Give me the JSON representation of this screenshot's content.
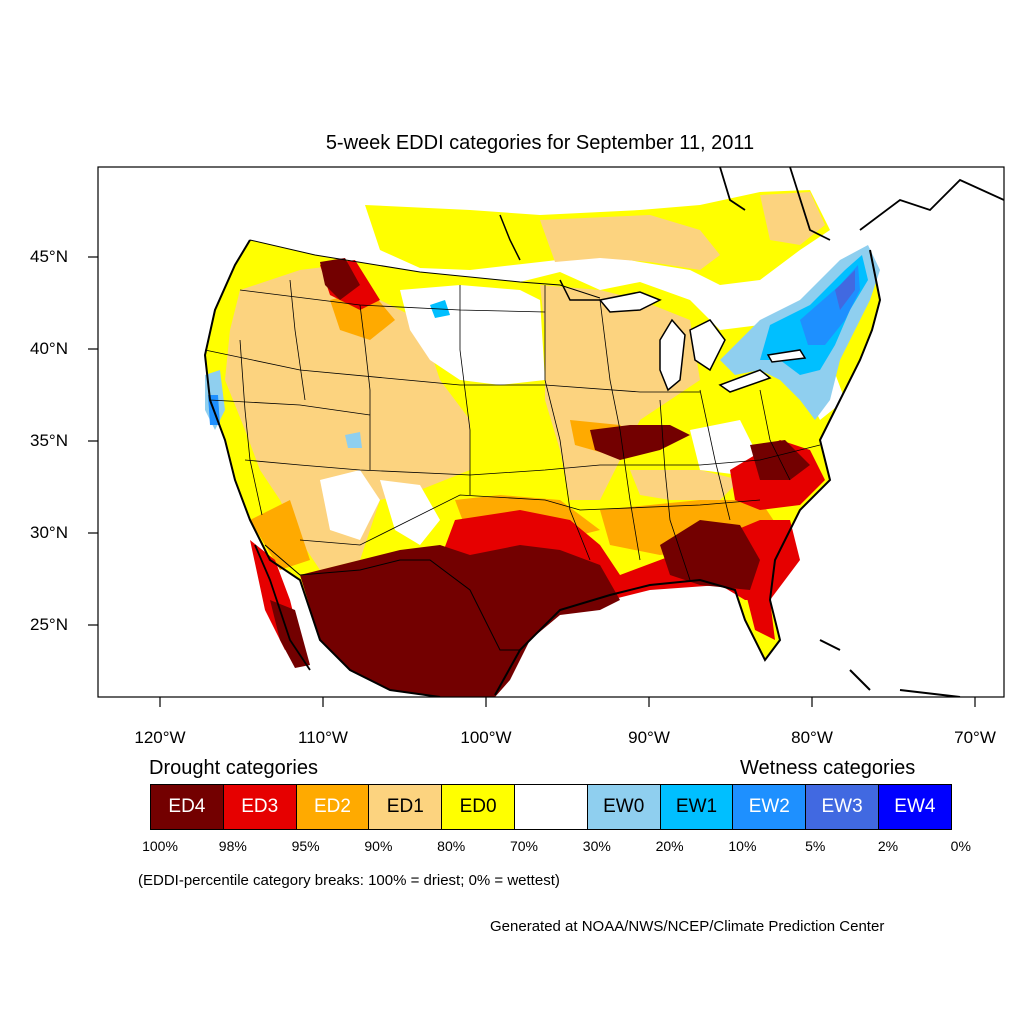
{
  "title": "5-week EDDI categories for September 11, 2011",
  "lat_labels": [
    "45°N",
    "40°N",
    "35°N",
    "30°N",
    "25°N"
  ],
  "lon_labels": [
    "120°W",
    "110°W",
    "100°W",
    "90°W",
    "80°W",
    "70°W"
  ],
  "legend": {
    "drought_heading": "Drought categories",
    "wetness_heading": "Wetness categories",
    "categories": [
      {
        "label": "ED4",
        "color": "#730000",
        "text_color": "#ffffff"
      },
      {
        "label": "ED3",
        "color": "#e60000",
        "text_color": "#ffffff"
      },
      {
        "label": "ED2",
        "color": "#ffaa00",
        "text_color": "#ffffff"
      },
      {
        "label": "ED1",
        "color": "#fcd37f",
        "text_color": "#000000"
      },
      {
        "label": "ED0",
        "color": "#ffff00",
        "text_color": "#000000"
      },
      {
        "label": "",
        "color": "#ffffff",
        "text_color": "#000000"
      },
      {
        "label": "EW0",
        "color": "#8fcfef",
        "text_color": "#000000"
      },
      {
        "label": "EW1",
        "color": "#00bfff",
        "text_color": "#000000"
      },
      {
        "label": "EW2",
        "color": "#1e90ff",
        "text_color": "#ffffff"
      },
      {
        "label": "EW3",
        "color": "#4169e1",
        "text_color": "#ffffff"
      },
      {
        "label": "EW4",
        "color": "#0000ff",
        "text_color": "#ffffff"
      }
    ],
    "breaks": [
      "100%",
      "98%",
      "95%",
      "90%",
      "80%",
      "70%",
      "30%",
      "20%",
      "10%",
      "5%",
      "2%",
      "0%"
    ]
  },
  "note": "(EDDI-percentile category breaks: 100% = driest; 0% = wettest)",
  "credit": "Generated at NOAA/NWS/NCEP/Climate Prediction Center"
}
